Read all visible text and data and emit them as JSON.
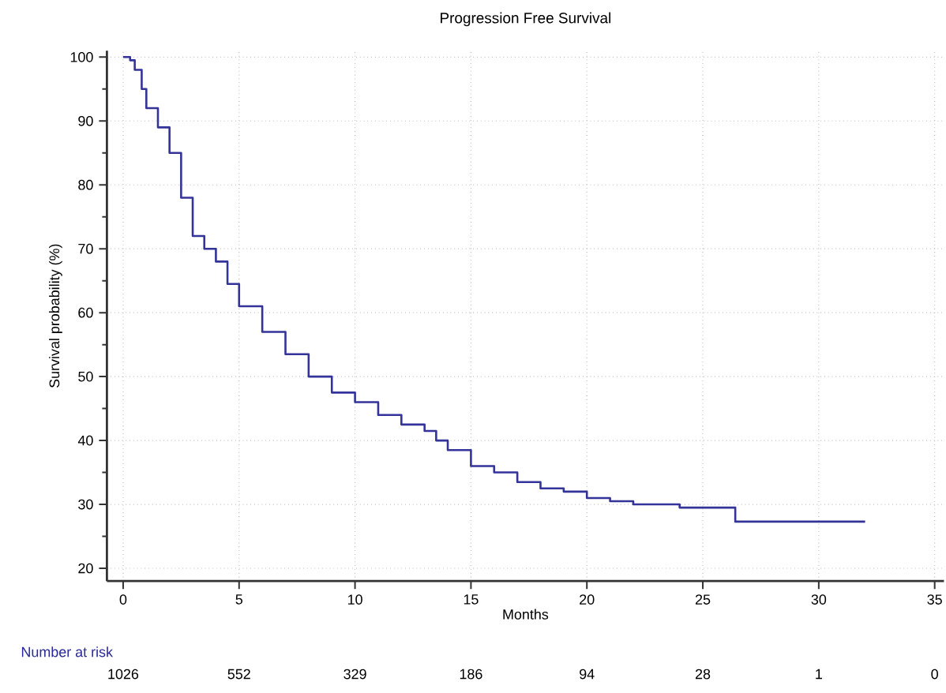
{
  "chart_data": {
    "type": "step",
    "title": "Progression Free Survival",
    "xlabel": "Months",
    "ylabel": "Survival probability (%)",
    "x": [
      0,
      0.3,
      0.5,
      0.8,
      1,
      1.5,
      2,
      2.5,
      3,
      3.5,
      4,
      4.5,
      5,
      6,
      7,
      8,
      9,
      10,
      11,
      12,
      13,
      13.5,
      14,
      15,
      16,
      17,
      18,
      19,
      20,
      21,
      22,
      23,
      24,
      25,
      26.2,
      26.4,
      32
    ],
    "series": [
      {
        "color": "#33339a",
        "values": [
          100,
          99.5,
          98,
          95,
          92,
          89,
          85,
          78,
          72,
          70,
          68,
          64.5,
          61,
          57,
          53.5,
          50,
          47.5,
          46,
          44,
          42.5,
          41.5,
          40,
          38.5,
          36,
          35,
          33.5,
          32.5,
          32,
          31,
          30.5,
          30,
          30,
          29.5,
          29.5,
          29.5,
          27.3,
          27.3
        ]
      }
    ],
    "xlim": [
      -0.7,
      35.4
    ],
    "ylim": [
      18,
      101
    ],
    "xticks": [
      0,
      5,
      10,
      15,
      20,
      25,
      30,
      35
    ],
    "yticks": [
      20,
      30,
      40,
      50,
      60,
      70,
      80,
      90,
      100
    ],
    "grid": true,
    "annotations": [
      "Number at risk",
      "1026",
      "552",
      "329",
      "186",
      "94",
      "28",
      "1",
      "0"
    ]
  }
}
